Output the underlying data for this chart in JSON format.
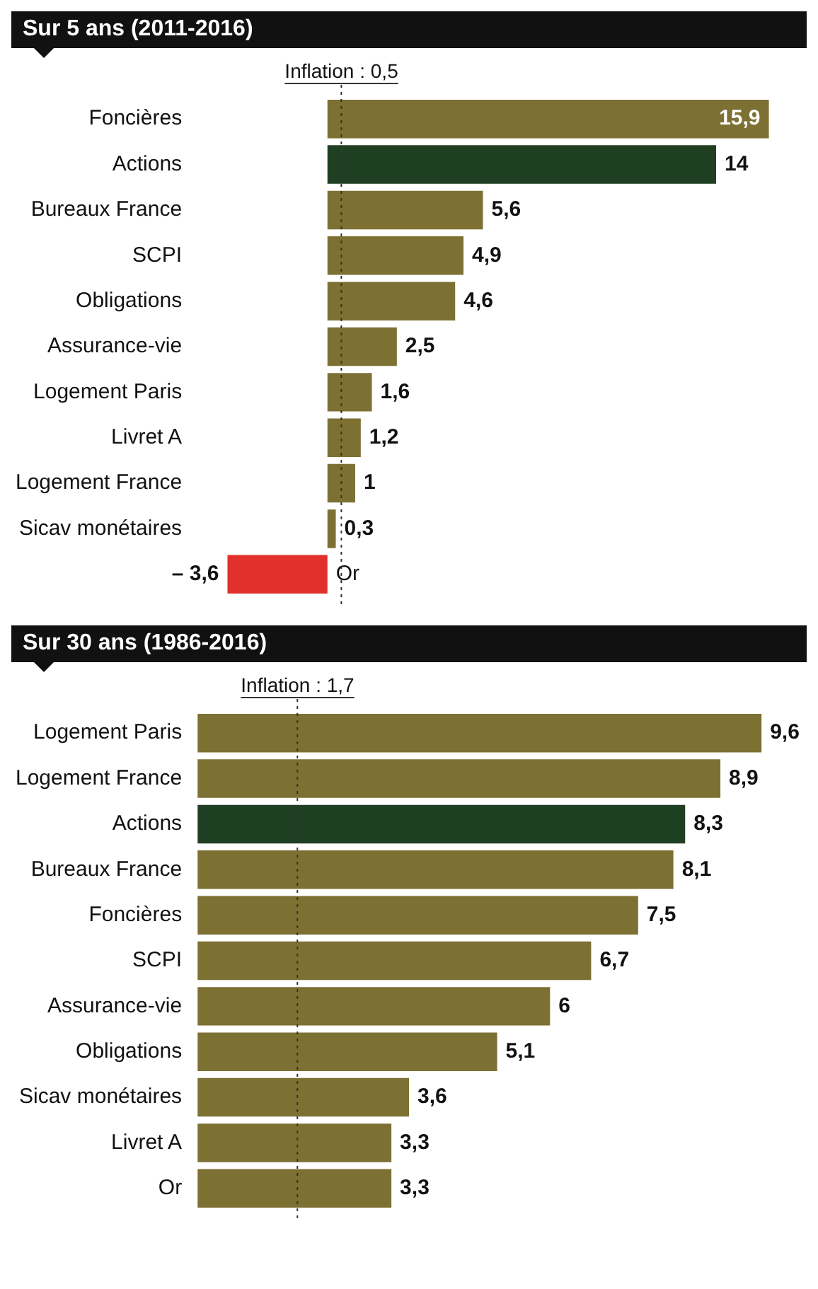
{
  "chart_data": [
    {
      "type": "bar",
      "orientation": "horizontal",
      "title": "Sur 5 ans (2011-2016)",
      "categories": [
        "Foncières",
        "Actions",
        "Bureaux France",
        "SCPI",
        "Obligations",
        "Assurance-vie",
        "Logement Paris",
        "Livret A",
        "Logement France",
        "Sicav monétaires",
        "Or"
      ],
      "values": [
        15.9,
        14,
        5.6,
        4.9,
        4.6,
        2.5,
        1.6,
        1.2,
        1,
        0.3,
        -3.6
      ],
      "colors": [
        "#7d7033",
        "#1f3f22",
        "#7d7033",
        "#7d7033",
        "#7d7033",
        "#7d7033",
        "#7d7033",
        "#7d7033",
        "#7d7033",
        "#7d7033",
        "#e2302b"
      ],
      "value_labels": [
        "15,9",
        "14",
        "5,6",
        "4,9",
        "4,6",
        "2,5",
        "1,6",
        "1,2",
        "1",
        "0,3",
        "– 3,6"
      ],
      "ref_lines": [
        {
          "axis": "x",
          "value": 0.5,
          "label": "Inflation : 0,5",
          "line_style": "dotted"
        }
      ]
    },
    {
      "type": "bar",
      "orientation": "horizontal",
      "title": "Sur 30 ans (1986-2016)",
      "categories": [
        "Logement Paris",
        "Logement France",
        "Actions",
        "Bureaux France",
        "Foncières",
        "SCPI",
        "Assurance-vie",
        "Obligations",
        "Sicav monétaires",
        "Livret A",
        "Or"
      ],
      "values": [
        9.6,
        8.9,
        8.3,
        8.1,
        7.5,
        6.7,
        6,
        5.1,
        3.6,
        3.3,
        3.3
      ],
      "colors": [
        "#7d7033",
        "#7d7033",
        "#1f3f22",
        "#7d7033",
        "#7d7033",
        "#7d7033",
        "#7d7033",
        "#7d7033",
        "#7d7033",
        "#7d7033",
        "#7d7033"
      ],
      "value_labels": [
        "9,6",
        "8,9",
        "8,3",
        "8,1",
        "7,5",
        "6,7",
        "6",
        "5,1",
        "3,6",
        "3,3",
        "3,3"
      ],
      "ref_lines": [
        {
          "axis": "x",
          "value": 1.7,
          "label": "Inflation : 1,7",
          "line_style": "dotted"
        }
      ]
    }
  ]
}
